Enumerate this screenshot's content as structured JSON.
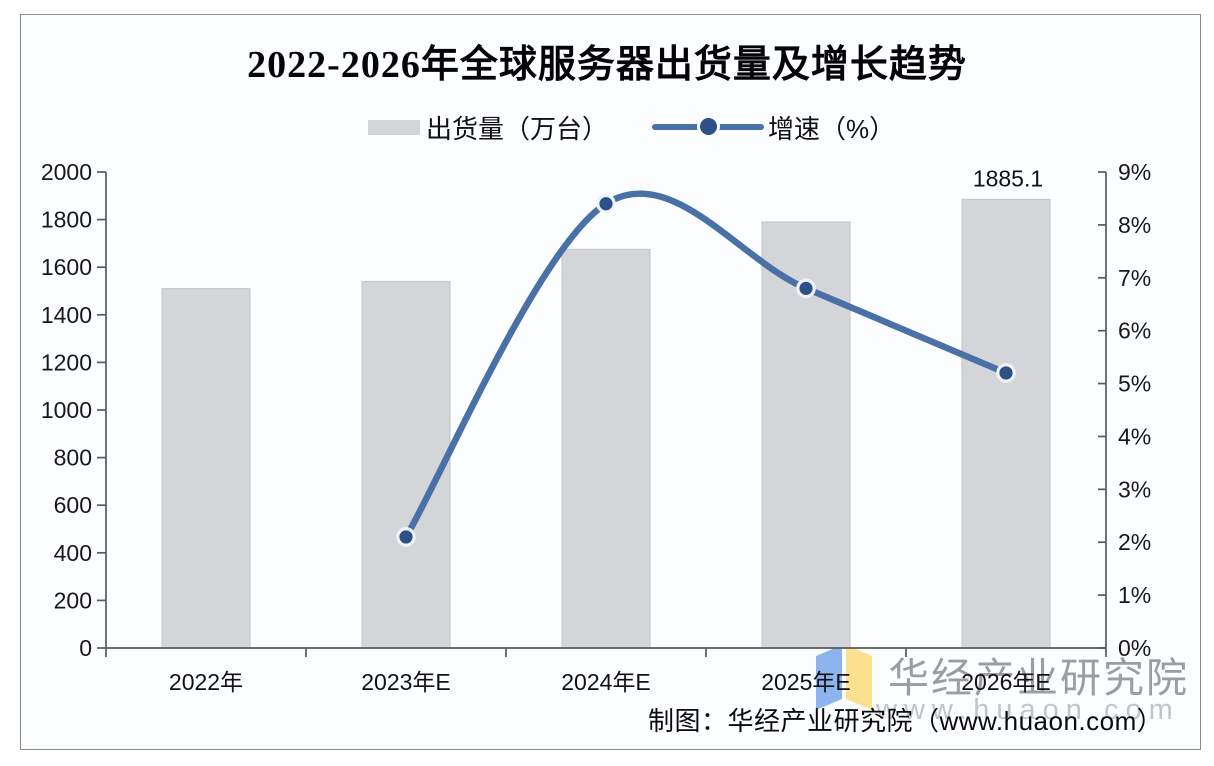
{
  "chart_data": {
    "type": "bar",
    "combo": "bar+line",
    "title": "2022-2026年全球服务器出货量及增长趋势",
    "categories": [
      "2022年",
      "2023年E",
      "2024年E",
      "2025年E",
      "2026年E"
    ],
    "series": [
      {
        "name": "出货量（万台）",
        "type": "bar",
        "axis": "left",
        "color": "#d4d5d8",
        "values": [
          1510,
          1540,
          1675,
          1790,
          1885.1
        ]
      },
      {
        "name": "增速（%）",
        "type": "line",
        "axis": "right",
        "color": "#4a70a8",
        "marker_color": "#2d5187",
        "values": [
          null,
          2.1,
          8.4,
          6.8,
          5.2
        ]
      }
    ],
    "left_axis": {
      "min": 0,
      "max": 2000,
      "step": 200,
      "tick_labels": [
        "0",
        "200",
        "400",
        "600",
        "800",
        "1000",
        "1200",
        "1400",
        "1600",
        "1800",
        "2000"
      ]
    },
    "right_axis": {
      "min": 0,
      "max": 9,
      "step": 1,
      "tick_labels": [
        "0%",
        "1%",
        "2%",
        "3%",
        "4%",
        "5%",
        "6%",
        "7%",
        "8%",
        "9%"
      ]
    },
    "data_labels": [
      {
        "series": "出货量（万台）",
        "category": "2026年E",
        "text": "1885.1"
      }
    ],
    "legend_position": "top",
    "grid": false
  },
  "watermark": {
    "brand": "华经产业研究院",
    "url": "www.huaon.com",
    "logo_blue": "#8db4ed",
    "logo_yellow": "#fbe18f"
  },
  "footer": {
    "credit": "制图：华经产业研究院（www.huaon.com）"
  },
  "colors": {
    "frame_border": "#8a8b8f",
    "frame_background": "#fcfdff",
    "axis": "#595a5e",
    "bar_fill": "#d4d5d8",
    "bar_stroke": "#c2c3c7",
    "line": "#4a70a8",
    "marker": "#2d5187",
    "marker_ring": "#eef3f9"
  }
}
